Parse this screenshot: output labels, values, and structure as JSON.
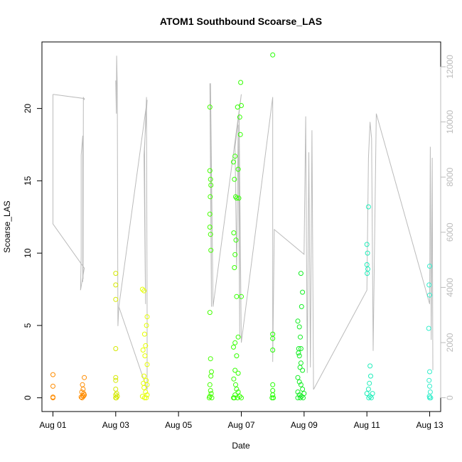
{
  "chart_data": {
    "type": "scatter",
    "title": "ATOM1 Southbound Scoarse_LAS",
    "xlabel": "Date",
    "ylabel": "Scoarse_LAS",
    "x_domain_days": [
      0.0,
      12.35
    ],
    "x_origin_label": "Aug 01",
    "ylim": [
      0,
      24
    ],
    "y2lim": [
      0,
      12600
    ],
    "x_ticks": [
      {
        "day": 0,
        "label": "Aug 01"
      },
      {
        "day": 2,
        "label": "Aug 03"
      },
      {
        "day": 4,
        "label": "Aug 05"
      },
      {
        "day": 6,
        "label": "Aug 07"
      },
      {
        "day": 8,
        "label": "Aug 09"
      },
      {
        "day": 10,
        "label": "Aug 11"
      },
      {
        "day": 12,
        "label": "Aug 13"
      }
    ],
    "y_ticks": [
      0,
      5,
      10,
      15,
      20
    ],
    "y2_ticks": [
      0,
      2000,
      4000,
      6000,
      8000,
      10000,
      12000
    ],
    "line_color": "#bbbbbb",
    "groups": [
      {
        "color": "#ff8c00",
        "points": [
          [
            0.0,
            1.6
          ],
          [
            0.0,
            0.8
          ],
          [
            0.0,
            0.05
          ],
          [
            0.0,
            0.0
          ],
          [
            0.9,
            0.05
          ],
          [
            0.92,
            0.4
          ],
          [
            0.94,
            0.9
          ],
          [
            0.96,
            0.6
          ],
          [
            0.98,
            0.3
          ],
          [
            1.0,
            0.2
          ],
          [
            0.93,
            0.0
          ],
          [
            0.97,
            0.1
          ],
          [
            1.0,
            1.4
          ],
          [
            0.95,
            0.15
          ]
        ]
      },
      {
        "color": "#d4e800",
        "points": [
          [
            2.0,
            8.6
          ],
          [
            2.0,
            7.8
          ],
          [
            2.0,
            6.8
          ],
          [
            2.0,
            3.4
          ],
          [
            2.0,
            1.4
          ],
          [
            2.0,
            1.2
          ],
          [
            2.0,
            0.6
          ],
          [
            2.0,
            0.2
          ],
          [
            2.0,
            0.0
          ],
          [
            2.03,
            0.3
          ],
          [
            2.05,
            0.1
          ],
          [
            2.02,
            0.0
          ]
        ]
      },
      {
        "color": "#e6ff00",
        "points": [
          [
            2.85,
            7.5
          ],
          [
            2.9,
            7.4
          ],
          [
            2.92,
            4.4
          ],
          [
            2.95,
            3.6
          ],
          [
            2.87,
            3.3
          ],
          [
            2.98,
            5.0
          ],
          [
            3.0,
            5.6
          ],
          [
            2.93,
            2.9
          ],
          [
            3.0,
            2.3
          ],
          [
            2.88,
            1.0
          ],
          [
            2.9,
            0.7
          ],
          [
            2.95,
            0.4
          ],
          [
            3.0,
            0.2
          ],
          [
            2.85,
            0.1
          ],
          [
            2.92,
            0.0
          ],
          [
            2.97,
            0.0
          ],
          [
            2.9,
            1.5
          ],
          [
            2.97,
            1.2
          ],
          [
            3.0,
            0.9
          ]
        ]
      },
      {
        "color": "#44ff00",
        "points": [
          [
            5.0,
            20.1
          ],
          [
            5.0,
            15.7
          ],
          [
            5.02,
            15.1
          ],
          [
            5.03,
            14.7
          ],
          [
            5.01,
            13.9
          ],
          [
            5.0,
            12.7
          ],
          [
            5.0,
            11.8
          ],
          [
            5.02,
            11.3
          ],
          [
            5.03,
            10.2
          ],
          [
            5.0,
            5.9
          ],
          [
            5.02,
            2.7
          ],
          [
            5.05,
            1.8
          ],
          [
            5.03,
            1.5
          ],
          [
            5.0,
            0.9
          ],
          [
            5.02,
            0.5
          ],
          [
            5.04,
            0.3
          ],
          [
            5.0,
            0.1
          ],
          [
            5.06,
            0.0
          ],
          [
            4.98,
            0.0
          ]
        ]
      },
      {
        "color": "#33ff00",
        "points": [
          [
            5.75,
            16.3
          ],
          [
            5.8,
            16.7
          ],
          [
            5.78,
            15.1
          ],
          [
            5.82,
            13.9
          ],
          [
            5.85,
            13.8
          ],
          [
            5.9,
            15.8
          ],
          [
            5.92,
            13.8
          ],
          [
            5.88,
            20.1
          ],
          [
            5.95,
            19.4
          ],
          [
            5.97,
            18.2
          ],
          [
            5.98,
            21.8
          ],
          [
            6.0,
            20.2
          ],
          [
            5.76,
            11.4
          ],
          [
            5.8,
            9.9
          ],
          [
            5.83,
            10.9
          ],
          [
            5.78,
            9.0
          ],
          [
            5.85,
            7.0
          ],
          [
            6.0,
            7.0
          ],
          [
            5.9,
            4.2
          ],
          [
            5.75,
            3.5
          ],
          [
            5.8,
            3.8
          ],
          [
            5.85,
            2.9
          ],
          [
            5.8,
            1.9
          ],
          [
            5.9,
            1.7
          ],
          [
            5.85,
            0.6
          ],
          [
            5.9,
            0.4
          ],
          [
            5.8,
            0.2
          ],
          [
            5.75,
            0.0
          ],
          [
            5.95,
            0.1
          ],
          [
            6.0,
            0.0
          ],
          [
            5.78,
            0.0
          ],
          [
            5.88,
            0.0
          ],
          [
            5.82,
            0.9
          ],
          [
            5.76,
            1.3
          ]
        ]
      },
      {
        "color": "#22ff00",
        "points": [
          [
            7.0,
            23.7
          ],
          [
            7.0,
            4.4
          ],
          [
            7.0,
            4.1
          ],
          [
            7.0,
            3.3
          ],
          [
            7.0,
            0.9
          ],
          [
            7.0,
            0.5
          ],
          [
            7.0,
            0.2
          ],
          [
            7.02,
            0.0
          ],
          [
            6.98,
            0.0
          ]
        ]
      },
      {
        "color": "#11ee22",
        "points": [
          [
            7.8,
            5.3
          ],
          [
            7.85,
            4.9
          ],
          [
            7.9,
            8.6
          ],
          [
            7.95,
            7.3
          ],
          [
            7.92,
            6.3
          ],
          [
            7.88,
            4.2
          ],
          [
            7.9,
            3.4
          ],
          [
            7.82,
            3.1
          ],
          [
            7.85,
            2.9
          ],
          [
            7.9,
            2.4
          ],
          [
            7.95,
            1.9
          ],
          [
            7.8,
            1.4
          ],
          [
            7.85,
            1.1
          ],
          [
            7.9,
            0.9
          ],
          [
            7.95,
            0.6
          ],
          [
            7.8,
            0.4
          ],
          [
            7.85,
            0.2
          ],
          [
            7.92,
            0.1
          ],
          [
            7.8,
            0.0
          ],
          [
            7.88,
            0.0
          ],
          [
            7.97,
            0.0
          ],
          [
            8.0,
            0.3
          ],
          [
            7.83,
            3.4
          ],
          [
            7.87,
            2.1
          ]
        ]
      },
      {
        "color": "#22eebb",
        "points": [
          [
            10.0,
            10.6
          ],
          [
            10.02,
            10.0
          ],
          [
            10.05,
            13.2
          ],
          [
            10.0,
            9.2
          ],
          [
            10.03,
            8.9
          ],
          [
            10.01,
            8.6
          ],
          [
            10.1,
            2.2
          ],
          [
            10.12,
            1.5
          ],
          [
            10.08,
            1.0
          ],
          [
            10.05,
            0.6
          ],
          [
            10.0,
            0.3
          ],
          [
            10.1,
            0.1
          ],
          [
            10.06,
            0.0
          ],
          [
            10.14,
            0.0
          ],
          [
            10.18,
            0.3
          ]
        ]
      },
      {
        "color": "#33eecc",
        "points": [
          [
            12.0,
            9.1
          ],
          [
            11.98,
            7.8
          ],
          [
            12.0,
            7.1
          ],
          [
            11.97,
            4.8
          ],
          [
            12.0,
            1.8
          ],
          [
            11.98,
            1.2
          ],
          [
            12.0,
            0.8
          ],
          [
            12.02,
            0.4
          ],
          [
            11.99,
            0.1
          ],
          [
            12.0,
            0.0
          ],
          [
            12.03,
            0.0
          ]
        ]
      }
    ],
    "line_series": [
      [
        0.0,
        11000
      ],
      [
        0.0,
        6300
      ],
      [
        1.0,
        4700
      ],
      [
        0.88,
        3900
      ],
      [
        0.9,
        5100
      ],
      [
        0.9,
        8800
      ],
      [
        0.95,
        9500
      ],
      [
        0.95,
        4200
      ],
      [
        0.96,
        9200
      ],
      [
        0.96,
        4300
      ],
      [
        0.97,
        10900
      ],
      [
        1.0,
        10800
      ],
      [
        1.0,
        10850
      ],
      [
        0.0,
        11000
      ]
    ],
    "line_series_2": [
      [
        2.0,
        11500
      ],
      [
        2.02,
        10300
      ],
      [
        2.03,
        12400
      ],
      [
        2.05,
        11300
      ],
      [
        2.07,
        2600
      ],
      [
        2.1,
        3300
      ],
      [
        3.0,
        10800
      ],
      [
        2.9,
        8800
      ],
      [
        2.95,
        3400
      ],
      [
        2.92,
        9000
      ],
      [
        2.98,
        10900
      ],
      [
        3.0,
        2900
      ],
      [
        3.0,
        300
      ],
      [
        2.1,
        3300
      ]
    ],
    "line_series_3": [
      [
        5.0,
        11400
      ],
      [
        5.05,
        3300
      ],
      [
        5.02,
        11400
      ],
      [
        5.1,
        3300
      ],
      [
        6.0,
        11000
      ],
      [
        5.8,
        9100
      ],
      [
        5.85,
        4700
      ],
      [
        5.9,
        9900
      ],
      [
        5.95,
        2200
      ],
      [
        5.93,
        10300
      ],
      [
        6.0,
        2000
      ],
      [
        7.0,
        10900
      ],
      [
        7.0,
        1300
      ],
      [
        7.05,
        6100
      ],
      [
        8.0,
        5200
      ],
      [
        8.05,
        10200
      ],
      [
        8.1,
        900
      ],
      [
        8.15,
        8900
      ],
      [
        8.2,
        1100
      ],
      [
        8.25,
        9700
      ],
      [
        8.3,
        300
      ],
      [
        10.0,
        3900
      ],
      [
        10.05,
        8700
      ],
      [
        10.1,
        10000
      ],
      [
        10.15,
        9400
      ],
      [
        10.2,
        1700
      ],
      [
        10.3,
        10300
      ],
      [
        12.0,
        3400
      ],
      [
        12.02,
        9100
      ],
      [
        12.05,
        2100
      ],
      [
        12.08,
        8700
      ],
      [
        12.1,
        1000
      ]
    ]
  }
}
